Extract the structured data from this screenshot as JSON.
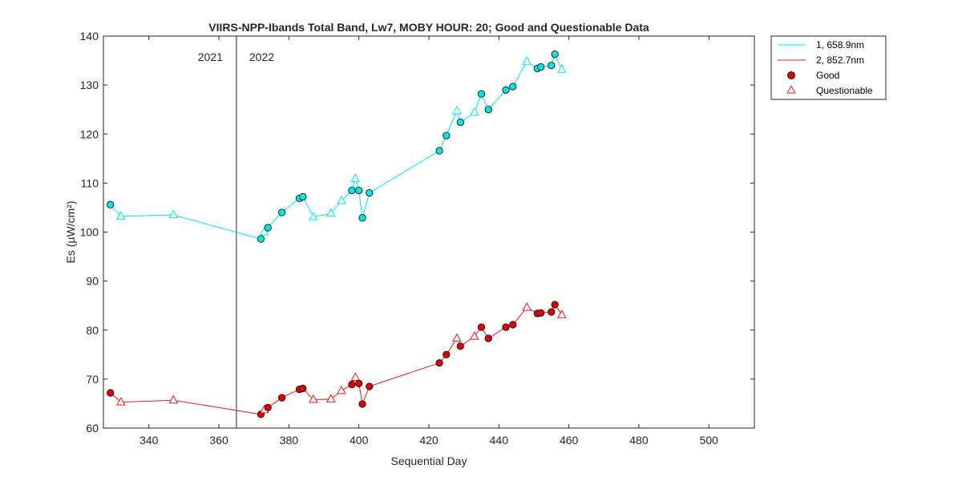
{
  "chart_data": {
    "type": "line",
    "title": "VIIRS-NPP-Ibands Total Band,  Lw7, MOBY HOUR: 20;  Good and Questionable Data",
    "xlabel": "Sequential Day",
    "ylabel": "Es (µW/cm²)",
    "xlim": [
      327,
      513
    ],
    "ylim": [
      60,
      140
    ],
    "x_ticks": [
      340,
      360,
      380,
      400,
      420,
      440,
      460,
      480,
      500
    ],
    "y_ticks": [
      60,
      70,
      80,
      90,
      100,
      110,
      120,
      130,
      140
    ],
    "grid": false,
    "legend_position": "outside-top-right",
    "year_divider": {
      "x": 365,
      "left_label": "2021",
      "right_label": "2022"
    },
    "legend": {
      "series_labels": [
        "1, 658.9nm",
        "2, 852.7nm"
      ],
      "good_label": "Good",
      "questionable_label": "Questionable"
    },
    "series": [
      {
        "name": "1, 658.9nm",
        "color": "#00e5e5",
        "marker_fill": "#00e5e5",
        "points": [
          {
            "x": 329,
            "y": 105.6,
            "q": "good"
          },
          {
            "x": 332,
            "y": 103.2,
            "q": "questionable"
          },
          {
            "x": 347,
            "y": 103.5,
            "q": "questionable"
          },
          {
            "x": 372,
            "y": 98.6,
            "q": "good"
          },
          {
            "x": 373,
            "y": 100.0,
            "q": "questionable"
          },
          {
            "x": 374,
            "y": 100.9,
            "q": "good"
          },
          {
            "x": 378,
            "y": 104.0,
            "q": "good"
          },
          {
            "x": 383,
            "y": 106.9,
            "q": "good"
          },
          {
            "x": 384,
            "y": 107.2,
            "q": "good"
          },
          {
            "x": 387,
            "y": 103.1,
            "q": "questionable"
          },
          {
            "x": 392,
            "y": 103.8,
            "q": "questionable"
          },
          {
            "x": 395,
            "y": 106.4,
            "q": "questionable"
          },
          {
            "x": 398,
            "y": 108.5,
            "q": "good"
          },
          {
            "x": 399,
            "y": 110.9,
            "q": "questionable"
          },
          {
            "x": 400,
            "y": 108.5,
            "q": "good"
          },
          {
            "x": 401,
            "y": 102.9,
            "q": "good"
          },
          {
            "x": 403,
            "y": 108.0,
            "q": "good"
          },
          {
            "x": 423,
            "y": 116.6,
            "q": "good"
          },
          {
            "x": 425,
            "y": 119.7,
            "q": "good"
          },
          {
            "x": 428,
            "y": 124.7,
            "q": "questionable"
          },
          {
            "x": 429,
            "y": 122.4,
            "q": "good"
          },
          {
            "x": 433,
            "y": 124.4,
            "q": "questionable"
          },
          {
            "x": 435,
            "y": 128.2,
            "q": "good"
          },
          {
            "x": 437,
            "y": 125.0,
            "q": "good"
          },
          {
            "x": 442,
            "y": 129.0,
            "q": "good"
          },
          {
            "x": 444,
            "y": 129.7,
            "q": "good"
          },
          {
            "x": 448,
            "y": 134.8,
            "q": "questionable"
          },
          {
            "x": 451,
            "y": 133.4,
            "q": "good"
          },
          {
            "x": 452,
            "y": 133.7,
            "q": "good"
          },
          {
            "x": 455,
            "y": 134.0,
            "q": "good"
          },
          {
            "x": 456,
            "y": 136.3,
            "q": "good"
          },
          {
            "x": 458,
            "y": 133.2,
            "q": "questionable"
          }
        ]
      },
      {
        "name": "2, 852.7nm",
        "color": "#e41a1c",
        "marker_fill": "#dd0000",
        "points": [
          {
            "x": 329,
            "y": 67.2,
            "q": "good"
          },
          {
            "x": 332,
            "y": 65.3,
            "q": "questionable"
          },
          {
            "x": 347,
            "y": 65.7,
            "q": "questionable"
          },
          {
            "x": 372,
            "y": 62.8,
            "q": "good"
          },
          {
            "x": 373,
            "y": 63.7,
            "q": "questionable"
          },
          {
            "x": 374,
            "y": 64.2,
            "q": "good"
          },
          {
            "x": 378,
            "y": 66.2,
            "q": "good"
          },
          {
            "x": 383,
            "y": 67.9,
            "q": "good"
          },
          {
            "x": 384,
            "y": 68.1,
            "q": "good"
          },
          {
            "x": 387,
            "y": 65.8,
            "q": "questionable"
          },
          {
            "x": 392,
            "y": 65.9,
            "q": "questionable"
          },
          {
            "x": 395,
            "y": 67.6,
            "q": "questionable"
          },
          {
            "x": 398,
            "y": 68.9,
            "q": "good"
          },
          {
            "x": 399,
            "y": 70.3,
            "q": "questionable"
          },
          {
            "x": 400,
            "y": 69.1,
            "q": "good"
          },
          {
            "x": 401,
            "y": 64.9,
            "q": "good"
          },
          {
            "x": 403,
            "y": 68.5,
            "q": "good"
          },
          {
            "x": 423,
            "y": 73.3,
            "q": "good"
          },
          {
            "x": 425,
            "y": 75.0,
            "q": "good"
          },
          {
            "x": 428,
            "y": 78.3,
            "q": "questionable"
          },
          {
            "x": 429,
            "y": 76.7,
            "q": "good"
          },
          {
            "x": 433,
            "y": 78.7,
            "q": "questionable"
          },
          {
            "x": 435,
            "y": 80.6,
            "q": "good"
          },
          {
            "x": 437,
            "y": 78.3,
            "q": "good"
          },
          {
            "x": 442,
            "y": 80.6,
            "q": "good"
          },
          {
            "x": 444,
            "y": 81.1,
            "q": "good"
          },
          {
            "x": 448,
            "y": 84.6,
            "q": "questionable"
          },
          {
            "x": 451,
            "y": 83.4,
            "q": "good"
          },
          {
            "x": 452,
            "y": 83.5,
            "q": "good"
          },
          {
            "x": 455,
            "y": 83.7,
            "q": "good"
          },
          {
            "x": 456,
            "y": 85.2,
            "q": "good"
          },
          {
            "x": 458,
            "y": 83.1,
            "q": "questionable"
          }
        ]
      }
    ]
  }
}
